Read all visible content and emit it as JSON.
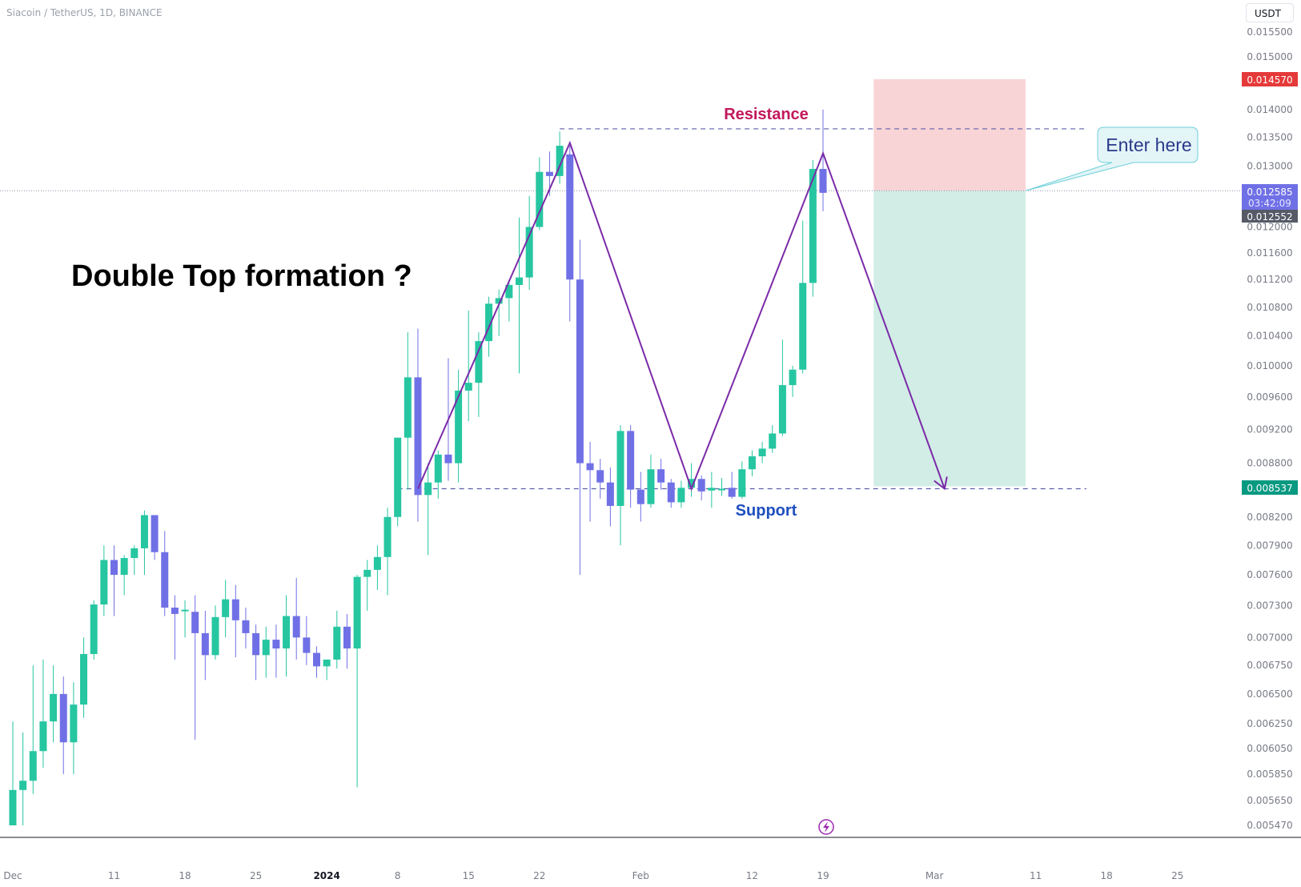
{
  "header": {
    "symbol_title": "Siacoin / TetherUS, 1D, BINANCE",
    "currency_label": "USDT"
  },
  "annotations": {
    "headline": "Double Top formation ?",
    "resistance_label": "Resistance",
    "support_label": "Support",
    "callout_label": "Enter here"
  },
  "price_badges": {
    "stop_loss": "0.014570",
    "target": "0.008537",
    "last_price": "0.012585",
    "countdown": "03:42:09",
    "prev_close": "0.012552"
  },
  "colors": {
    "up": "#26c6a1",
    "down": "#7070e6",
    "pattern_line": "#7b2aa8",
    "resistance_text": "#c2185b",
    "support_text": "#1e4fbf",
    "stop_zone": "#f9d4d6",
    "target_zone": "#d1ede6",
    "badge_red": "#e53a3a",
    "badge_green": "#089981",
    "badge_purple": "#7070e6",
    "badge_gray": "#555a66"
  },
  "icons": [
    "lightning-icon"
  ],
  "chart_data": {
    "type": "candlestick",
    "y_scale": "log",
    "ylim": [
      0.0053,
      0.0162
    ],
    "y_ticks": [
      "0.015500",
      "0.015000",
      "0.014000",
      "0.013500",
      "0.013000",
      "0.012000",
      "0.011600",
      "0.011200",
      "0.010800",
      "0.010400",
      "0.010000",
      "0.009600",
      "0.009200",
      "0.008800",
      "0.008200",
      "0.007900",
      "0.007600",
      "0.007300",
      "0.007000",
      "0.006750",
      "0.006500",
      "0.006250",
      "0.006050",
      "0.005850",
      "0.005650",
      "0.005470"
    ],
    "x_ticks": [
      {
        "label": "Dec",
        "date": "2023-12-01",
        "bold": false
      },
      {
        "label": "11",
        "date": "2023-12-11",
        "bold": false
      },
      {
        "label": "18",
        "date": "2023-12-18",
        "bold": false
      },
      {
        "label": "25",
        "date": "2023-12-25",
        "bold": false
      },
      {
        "label": "2024",
        "date": "2024-01-01",
        "bold": true
      },
      {
        "label": "8",
        "date": "2024-01-08",
        "bold": false
      },
      {
        "label": "15",
        "date": "2024-01-15",
        "bold": false
      },
      {
        "label": "22",
        "date": "2024-01-22",
        "bold": false
      },
      {
        "label": "Feb",
        "date": "2024-02-01",
        "bold": false
      },
      {
        "label": "12",
        "date": "2024-02-12",
        "bold": false
      },
      {
        "label": "19",
        "date": "2024-02-19",
        "bold": false
      },
      {
        "label": "Mar",
        "date": "2024-03-01",
        "bold": false
      },
      {
        "label": "11",
        "date": "2024-03-11",
        "bold": false
      },
      {
        "label": "18",
        "date": "2024-03-18",
        "bold": false
      },
      {
        "label": "25",
        "date": "2024-03-25",
        "bold": false
      }
    ],
    "ohlc": [
      {
        "date": "2023-12-01",
        "o": 0.00547,
        "h": 0.00627,
        "l": 0.00547,
        "c": 0.00573
      },
      {
        "date": "2023-12-02",
        "o": 0.00573,
        "h": 0.00618,
        "l": 0.00547,
        "c": 0.0058
      },
      {
        "date": "2023-12-03",
        "o": 0.0058,
        "h": 0.00675,
        "l": 0.0057,
        "c": 0.00603
      },
      {
        "date": "2023-12-04",
        "o": 0.00603,
        "h": 0.0068,
        "l": 0.0059,
        "c": 0.00627
      },
      {
        "date": "2023-12-05",
        "o": 0.00627,
        "h": 0.00675,
        "l": 0.0061,
        "c": 0.0065
      },
      {
        "date": "2023-12-06",
        "o": 0.0065,
        "h": 0.00665,
        "l": 0.00585,
        "c": 0.0061
      },
      {
        "date": "2023-12-07",
        "o": 0.0061,
        "h": 0.0066,
        "l": 0.00585,
        "c": 0.00641
      },
      {
        "date": "2023-12-08",
        "o": 0.00641,
        "h": 0.007,
        "l": 0.0063,
        "c": 0.00685
      },
      {
        "date": "2023-12-09",
        "o": 0.00685,
        "h": 0.00735,
        "l": 0.0068,
        "c": 0.00731
      },
      {
        "date": "2023-12-10",
        "o": 0.00731,
        "h": 0.0079,
        "l": 0.0072,
        "c": 0.00775
      },
      {
        "date": "2023-12-11",
        "o": 0.00775,
        "h": 0.0079,
        "l": 0.0072,
        "c": 0.0076
      },
      {
        "date": "2023-12-12",
        "o": 0.0076,
        "h": 0.0078,
        "l": 0.0074,
        "c": 0.00777
      },
      {
        "date": "2023-12-13",
        "o": 0.00777,
        "h": 0.0079,
        "l": 0.0076,
        "c": 0.00787
      },
      {
        "date": "2023-12-14",
        "o": 0.00787,
        "h": 0.00827,
        "l": 0.0076,
        "c": 0.00822
      },
      {
        "date": "2023-12-15",
        "o": 0.00822,
        "h": 0.00822,
        "l": 0.00775,
        "c": 0.00783
      },
      {
        "date": "2023-12-16",
        "o": 0.00783,
        "h": 0.00805,
        "l": 0.0072,
        "c": 0.00728
      },
      {
        "date": "2023-12-17",
        "o": 0.00728,
        "h": 0.0074,
        "l": 0.0068,
        "c": 0.00722
      },
      {
        "date": "2023-12-18",
        "o": 0.00726,
        "h": 0.00735,
        "l": 0.007,
        "c": 0.00726
      },
      {
        "date": "2023-12-19",
        "o": 0.00724,
        "h": 0.0074,
        "l": 0.00612,
        "c": 0.00704
      },
      {
        "date": "2023-12-20",
        "o": 0.00704,
        "h": 0.00725,
        "l": 0.00662,
        "c": 0.00684
      },
      {
        "date": "2023-12-21",
        "o": 0.00684,
        "h": 0.0073,
        "l": 0.0068,
        "c": 0.00719
      },
      {
        "date": "2023-12-22",
        "o": 0.00719,
        "h": 0.00755,
        "l": 0.007,
        "c": 0.00736
      },
      {
        "date": "2023-12-23",
        "o": 0.00736,
        "h": 0.0075,
        "l": 0.00682,
        "c": 0.00716
      },
      {
        "date": "2023-12-24",
        "o": 0.00716,
        "h": 0.00728,
        "l": 0.0069,
        "c": 0.00704
      },
      {
        "date": "2023-12-25",
        "o": 0.00704,
        "h": 0.00712,
        "l": 0.00662,
        "c": 0.00684
      },
      {
        "date": "2023-12-26",
        "o": 0.00684,
        "h": 0.0071,
        "l": 0.00664,
        "c": 0.00698
      },
      {
        "date": "2023-12-27",
        "o": 0.00698,
        "h": 0.00712,
        "l": 0.00664,
        "c": 0.0069
      },
      {
        "date": "2023-12-28",
        "o": 0.0069,
        "h": 0.0074,
        "l": 0.00665,
        "c": 0.0072
      },
      {
        "date": "2023-12-29",
        "o": 0.0072,
        "h": 0.00757,
        "l": 0.0068,
        "c": 0.007
      },
      {
        "date": "2023-12-30",
        "o": 0.007,
        "h": 0.0072,
        "l": 0.00675,
        "c": 0.00686
      },
      {
        "date": "2023-12-31",
        "o": 0.00686,
        "h": 0.00692,
        "l": 0.00664,
        "c": 0.00674
      },
      {
        "date": "2024-01-01",
        "o": 0.00674,
        "h": 0.0068,
        "l": 0.00662,
        "c": 0.0068
      },
      {
        "date": "2024-01-02",
        "o": 0.0068,
        "h": 0.00725,
        "l": 0.00672,
        "c": 0.0071
      },
      {
        "date": "2024-01-03",
        "o": 0.0071,
        "h": 0.00722,
        "l": 0.00672,
        "c": 0.0069
      },
      {
        "date": "2024-01-04",
        "o": 0.0069,
        "h": 0.0076,
        "l": 0.00575,
        "c": 0.00758
      },
      {
        "date": "2024-01-05",
        "o": 0.00758,
        "h": 0.00775,
        "l": 0.00725,
        "c": 0.00765
      },
      {
        "date": "2024-01-06",
        "o": 0.00765,
        "h": 0.0079,
        "l": 0.00745,
        "c": 0.00778
      },
      {
        "date": "2024-01-07",
        "o": 0.00778,
        "h": 0.0083,
        "l": 0.0074,
        "c": 0.0082
      },
      {
        "date": "2024-01-08",
        "o": 0.0082,
        "h": 0.00905,
        "l": 0.0081,
        "c": 0.0091
      },
      {
        "date": "2024-01-09",
        "o": 0.0091,
        "h": 0.01045,
        "l": 0.0085,
        "c": 0.00985
      },
      {
        "date": "2024-01-10",
        "o": 0.00985,
        "h": 0.0105,
        "l": 0.00815,
        "c": 0.00844
      },
      {
        "date": "2024-01-11",
        "o": 0.00844,
        "h": 0.0088,
        "l": 0.0078,
        "c": 0.00858
      },
      {
        "date": "2024-01-12",
        "o": 0.00858,
        "h": 0.00895,
        "l": 0.0084,
        "c": 0.0089
      },
      {
        "date": "2024-01-13",
        "o": 0.0089,
        "h": 0.0101,
        "l": 0.0086,
        "c": 0.0088
      },
      {
        "date": "2024-01-14",
        "o": 0.0088,
        "h": 0.00995,
        "l": 0.00858,
        "c": 0.00968
      },
      {
        "date": "2024-01-15",
        "o": 0.00968,
        "h": 0.01075,
        "l": 0.0093,
        "c": 0.00978
      },
      {
        "date": "2024-01-16",
        "o": 0.00978,
        "h": 0.01045,
        "l": 0.00935,
        "c": 0.01033
      },
      {
        "date": "2024-01-17",
        "o": 0.01033,
        "h": 0.01095,
        "l": 0.01012,
        "c": 0.01085
      },
      {
        "date": "2024-01-18",
        "o": 0.01085,
        "h": 0.01105,
        "l": 0.0104,
        "c": 0.01093
      },
      {
        "date": "2024-01-19",
        "o": 0.01093,
        "h": 0.0112,
        "l": 0.0106,
        "c": 0.01112
      },
      {
        "date": "2024-01-20",
        "o": 0.01112,
        "h": 0.01215,
        "l": 0.0099,
        "c": 0.01123
      },
      {
        "date": "2024-01-21",
        "o": 0.01123,
        "h": 0.0125,
        "l": 0.01105,
        "c": 0.012
      },
      {
        "date": "2024-01-22",
        "o": 0.012,
        "h": 0.01315,
        "l": 0.01195,
        "c": 0.0129
      },
      {
        "date": "2024-01-23",
        "o": 0.0129,
        "h": 0.01325,
        "l": 0.0125,
        "c": 0.01283
      },
      {
        "date": "2024-01-24",
        "o": 0.01283,
        "h": 0.0136,
        "l": 0.0127,
        "c": 0.01335
      },
      {
        "date": "2024-01-25",
        "o": 0.0132,
        "h": 0.01335,
        "l": 0.0106,
        "c": 0.0112
      },
      {
        "date": "2024-01-26",
        "o": 0.0112,
        "h": 0.0118,
        "l": 0.0076,
        "c": 0.0088
      },
      {
        "date": "2024-01-27",
        "o": 0.0088,
        "h": 0.00905,
        "l": 0.00815,
        "c": 0.00872
      },
      {
        "date": "2024-01-28",
        "o": 0.00872,
        "h": 0.00885,
        "l": 0.0084,
        "c": 0.00858
      },
      {
        "date": "2024-01-29",
        "o": 0.00858,
        "h": 0.00875,
        "l": 0.0081,
        "c": 0.00832
      },
      {
        "date": "2024-01-30",
        "o": 0.00832,
        "h": 0.00925,
        "l": 0.0079,
        "c": 0.00918
      },
      {
        "date": "2024-01-31",
        "o": 0.00918,
        "h": 0.00925,
        "l": 0.0083,
        "c": 0.0085
      },
      {
        "date": "2024-02-01",
        "o": 0.0085,
        "h": 0.0087,
        "l": 0.00815,
        "c": 0.00834
      },
      {
        "date": "2024-02-02",
        "o": 0.00834,
        "h": 0.0089,
        "l": 0.0083,
        "c": 0.00873
      },
      {
        "date": "2024-02-03",
        "o": 0.00873,
        "h": 0.00885,
        "l": 0.0085,
        "c": 0.00858
      },
      {
        "date": "2024-02-04",
        "o": 0.00858,
        "h": 0.00862,
        "l": 0.0083,
        "c": 0.00836
      },
      {
        "date": "2024-02-05",
        "o": 0.00836,
        "h": 0.0086,
        "l": 0.0083,
        "c": 0.00852
      },
      {
        "date": "2024-02-06",
        "o": 0.00852,
        "h": 0.0088,
        "l": 0.00842,
        "c": 0.00862
      },
      {
        "date": "2024-02-07",
        "o": 0.00862,
        "h": 0.00866,
        "l": 0.00838,
        "c": 0.00848
      },
      {
        "date": "2024-02-08",
        "o": 0.00849,
        "h": 0.0087,
        "l": 0.0083,
        "c": 0.00852
      },
      {
        "date": "2024-02-09",
        "o": 0.00851,
        "h": 0.00863,
        "l": 0.00843,
        "c": 0.00851
      },
      {
        "date": "2024-02-10",
        "o": 0.00852,
        "h": 0.0087,
        "l": 0.0084,
        "c": 0.00842
      },
      {
        "date": "2024-02-11",
        "o": 0.00842,
        "h": 0.00882,
        "l": 0.0084,
        "c": 0.00873
      },
      {
        "date": "2024-02-12",
        "o": 0.00873,
        "h": 0.00895,
        "l": 0.00865,
        "c": 0.00888
      },
      {
        "date": "2024-02-13",
        "o": 0.00888,
        "h": 0.00905,
        "l": 0.0088,
        "c": 0.00897
      },
      {
        "date": "2024-02-14",
        "o": 0.00897,
        "h": 0.00925,
        "l": 0.00892,
        "c": 0.00915
      },
      {
        "date": "2024-02-15",
        "o": 0.00915,
        "h": 0.01035,
        "l": 0.00912,
        "c": 0.00975
      },
      {
        "date": "2024-02-16",
        "o": 0.00975,
        "h": 0.01,
        "l": 0.0096,
        "c": 0.00995
      },
      {
        "date": "2024-02-17",
        "o": 0.00995,
        "h": 0.0121,
        "l": 0.0099,
        "c": 0.01115
      },
      {
        "date": "2024-02-18",
        "o": 0.01115,
        "h": 0.0131,
        "l": 0.01095,
        "c": 0.01295
      },
      {
        "date": "2024-02-19",
        "o": 0.01295,
        "h": 0.014,
        "l": 0.01225,
        "c": 0.01255
      }
    ],
    "pattern_zigzag": [
      {
        "date": "2024-01-10",
        "price": 0.00851
      },
      {
        "date": "2024-01-25",
        "price": 0.0134
      },
      {
        "date": "2024-02-06",
        "price": 0.00851
      },
      {
        "date": "2024-02-19",
        "price": 0.01322
      },
      {
        "date": "2024-03-02",
        "price": 0.00851
      }
    ],
    "resistance": {
      "price": 0.01365,
      "from": "2024-01-24",
      "to": "2024-03-16"
    },
    "support": {
      "price": 0.00851,
      "from": "2024-01-08",
      "to": "2024-03-16"
    },
    "last_price_line": 0.012585,
    "position": {
      "from": "2024-02-24",
      "to": "2024-03-10",
      "entry": 0.012585,
      "stop": 0.01457,
      "target": 0.008537
    }
  }
}
